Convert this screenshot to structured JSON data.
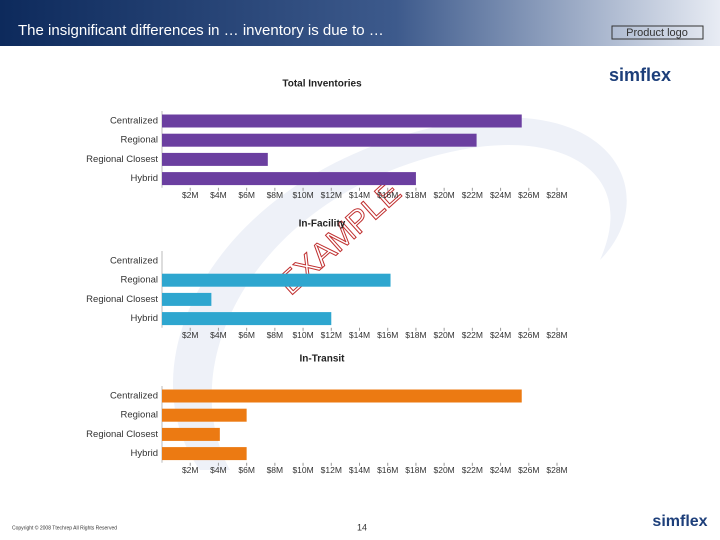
{
  "header": {
    "title": "The insignificant differences in … inventory is due to …",
    "logo_box": "Product logo"
  },
  "logo": "simflex",
  "watermark": "EXAMPLE",
  "footer": {
    "copyright": "Copyright © 2008 Ttechrep All Rights Reserved",
    "page": "14"
  },
  "chart_data": [
    {
      "type": "bar",
      "orientation": "horizontal",
      "title": "Total Inventories",
      "color": "#6b3fa0",
      "categories": [
        "Centralized",
        "Regional",
        "Regional Closest",
        "Hybrid"
      ],
      "values": [
        25500000,
        22300000,
        7500000,
        18000000
      ],
      "xlim": [
        0,
        28000000
      ],
      "xticks": [
        {
          "value": 2000000,
          "label": "$2M"
        },
        {
          "value": 4000000,
          "label": "$4M"
        },
        {
          "value": 6000000,
          "label": "$6M"
        },
        {
          "value": 8000000,
          "label": "$8M"
        },
        {
          "value": 10000000,
          "label": "$10M"
        },
        {
          "value": 12000000,
          "label": "$12M"
        },
        {
          "value": 14000000,
          "label": "$14M"
        },
        {
          "value": 16000000,
          "label": "$16M"
        },
        {
          "value": 18000000,
          "label": "$18M"
        },
        {
          "value": 20000000,
          "label": "$20M"
        },
        {
          "value": 22000000,
          "label": "$22M"
        },
        {
          "value": 24000000,
          "label": "$24M"
        },
        {
          "value": 26000000,
          "label": "$26M"
        },
        {
          "value": 28000000,
          "label": "$28M"
        }
      ]
    },
    {
      "type": "bar",
      "orientation": "horizontal",
      "title": "In-Facility",
      "color": "#2ea6cf",
      "categories": [
        "Centralized",
        "Regional",
        "Regional Closest",
        "Hybrid"
      ],
      "values": [
        0,
        16200000,
        3500000,
        12000000
      ],
      "xlim": [
        0,
        28000000
      ],
      "xticks": [
        {
          "value": 2000000,
          "label": "$2M"
        },
        {
          "value": 4000000,
          "label": "$4M"
        },
        {
          "value": 6000000,
          "label": "$6M"
        },
        {
          "value": 8000000,
          "label": "$8M"
        },
        {
          "value": 10000000,
          "label": "$10M"
        },
        {
          "value": 12000000,
          "label": "$12M"
        },
        {
          "value": 14000000,
          "label": "$14M"
        },
        {
          "value": 16000000,
          "label": "$16M"
        },
        {
          "value": 18000000,
          "label": "$18M"
        },
        {
          "value": 20000000,
          "label": "$20M"
        },
        {
          "value": 22000000,
          "label": "$22M"
        },
        {
          "value": 24000000,
          "label": "$24M"
        },
        {
          "value": 26000000,
          "label": "$26M"
        },
        {
          "value": 28000000,
          "label": "$28M"
        }
      ]
    },
    {
      "type": "bar",
      "orientation": "horizontal",
      "title": "In-Transit",
      "color": "#ec7a12",
      "categories": [
        "Centralized",
        "Regional",
        "Regional Closest",
        "Hybrid"
      ],
      "values": [
        25500000,
        6000000,
        4100000,
        6000000
      ],
      "xlim": [
        0,
        28000000
      ],
      "xticks": [
        {
          "value": 2000000,
          "label": "$2M"
        },
        {
          "value": 4000000,
          "label": "$4M"
        },
        {
          "value": 6000000,
          "label": "$6M"
        },
        {
          "value": 8000000,
          "label": "$8M"
        },
        {
          "value": 10000000,
          "label": "$10M"
        },
        {
          "value": 12000000,
          "label": "$12M"
        },
        {
          "value": 14000000,
          "label": "$14M"
        },
        {
          "value": 16000000,
          "label": "$16M"
        },
        {
          "value": 18000000,
          "label": "$18M"
        },
        {
          "value": 20000000,
          "label": "$20M"
        },
        {
          "value": 22000000,
          "label": "$22M"
        },
        {
          "value": 24000000,
          "label": "$24M"
        },
        {
          "value": 26000000,
          "label": "$26M"
        },
        {
          "value": 28000000,
          "label": "$28M"
        }
      ]
    }
  ]
}
